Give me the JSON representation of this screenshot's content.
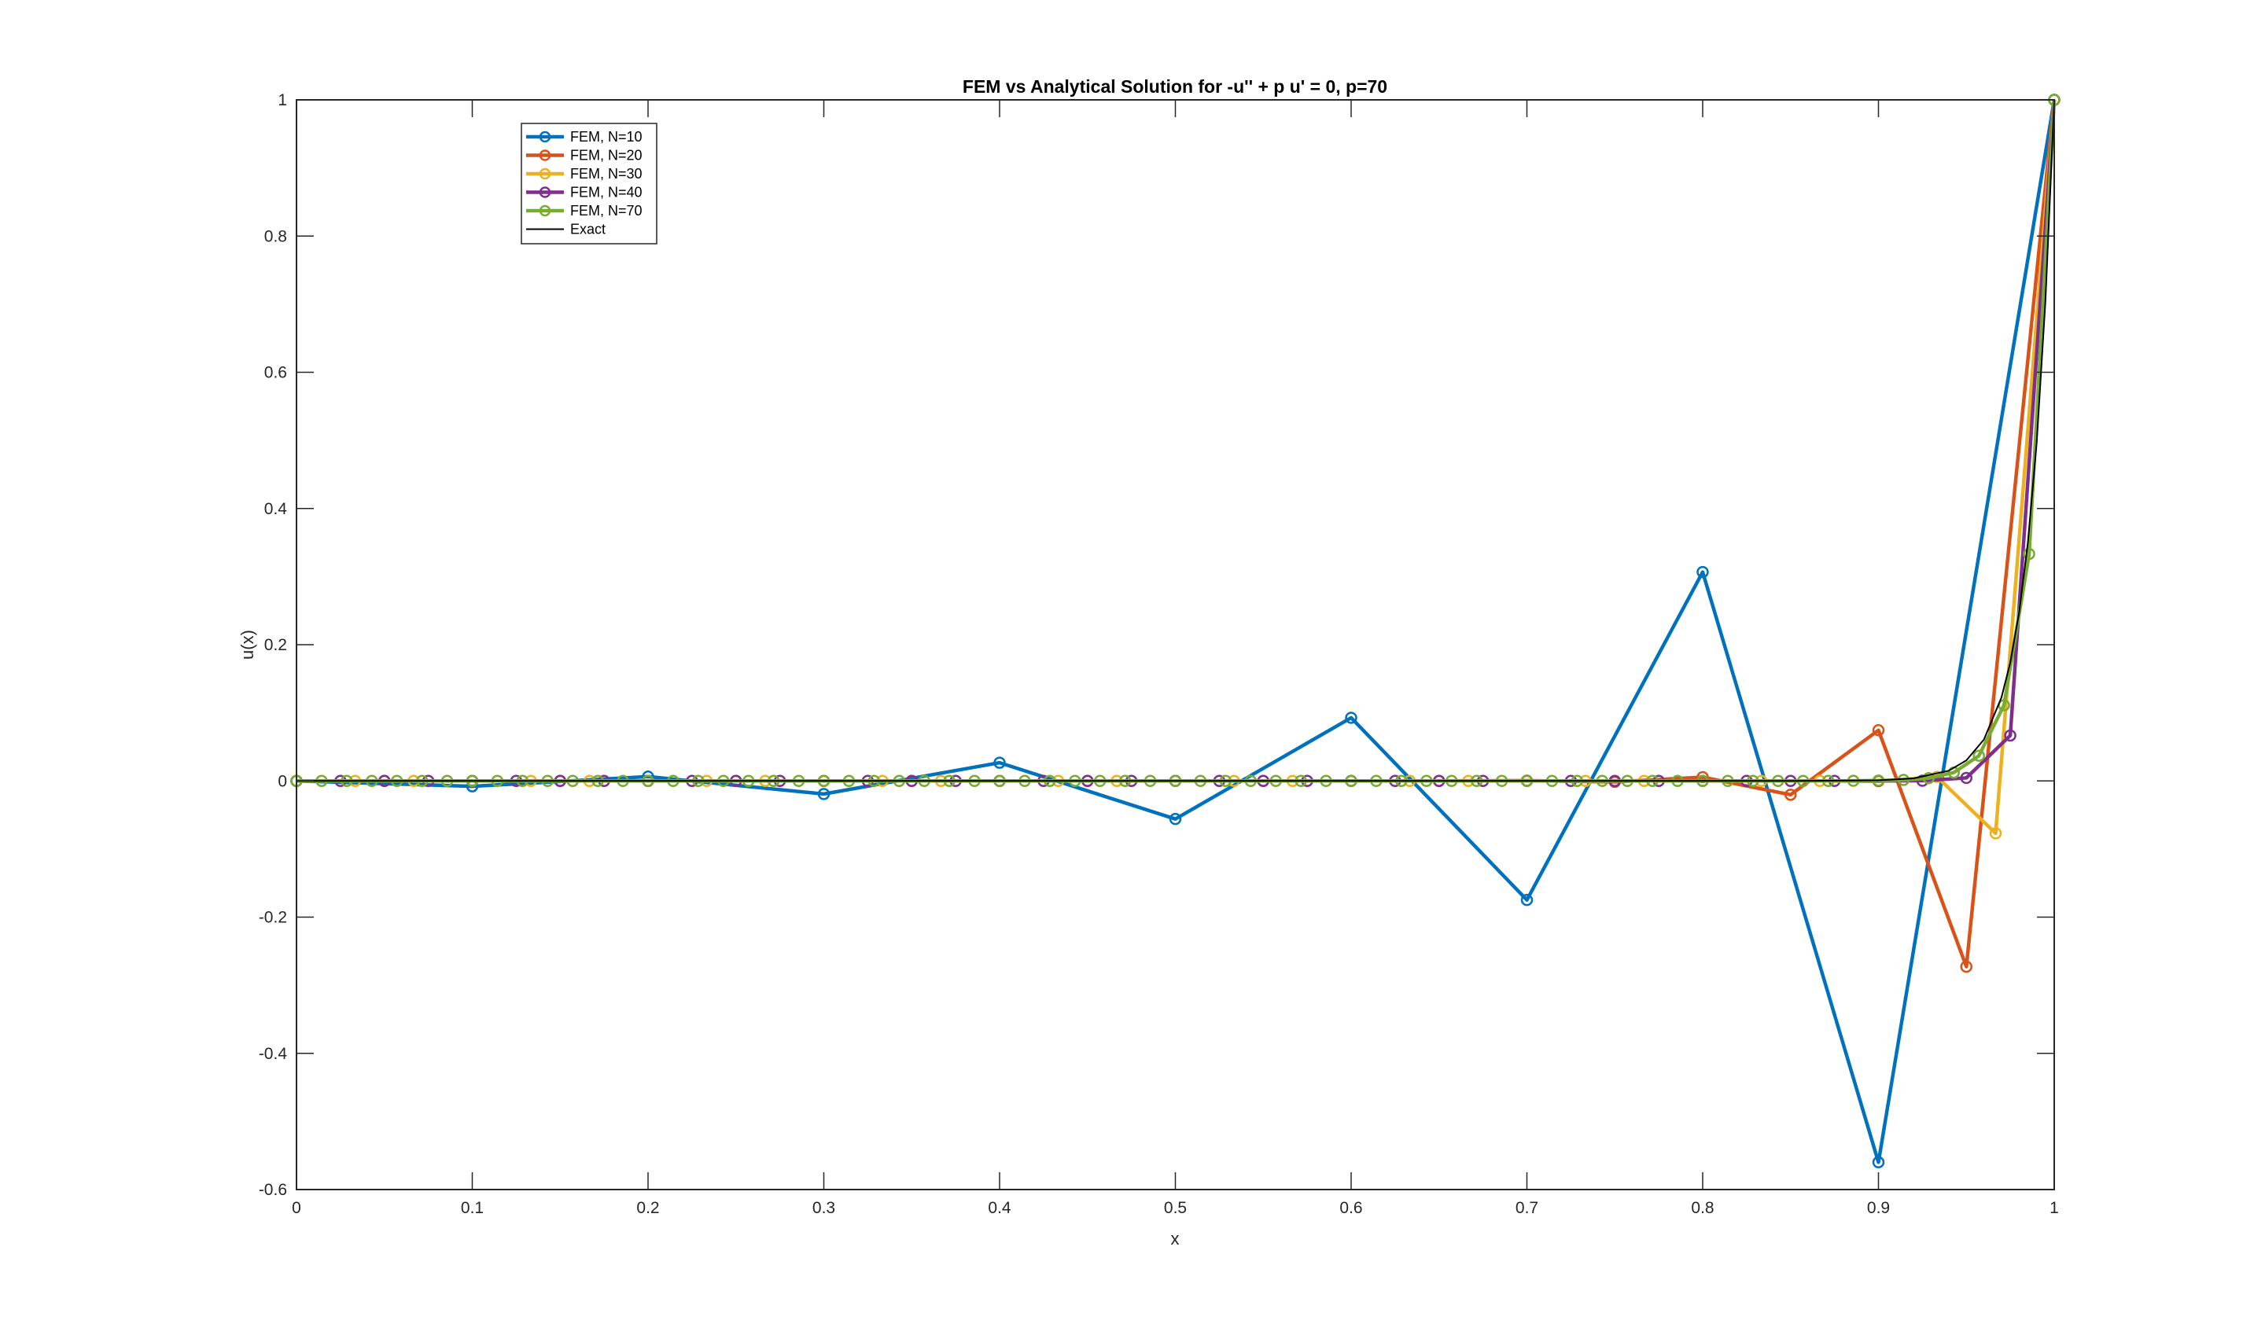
{
  "chart_data": {
    "type": "line",
    "title": "FEM vs Analytical Solution for -u'' + p u' = 0,  p=70",
    "xlabel": "x",
    "ylabel": "u(x)",
    "xlim": [
      0,
      1
    ],
    "ylim": [
      -0.6,
      1
    ],
    "xticks": [
      "0",
      "0.1",
      "0.2",
      "0.3",
      "0.4",
      "0.5",
      "0.6",
      "0.7",
      "0.8",
      "0.9",
      "1"
    ],
    "yticks": [
      "-0.6",
      "-0.4",
      "-0.2",
      "0",
      "0.2",
      "0.4",
      "0.6",
      "0.8",
      "1"
    ],
    "grid": false,
    "legend_placement": "top-left",
    "series": [
      {
        "name": "FEM, N=10",
        "N": 10,
        "color": "#0072BD",
        "marker": "circle",
        "y": [
          0,
          -0.0079,
          0.0063,
          -0.0192,
          0.0267,
          -0.0559,
          0.0927,
          -0.1748,
          0.3067,
          -0.5599,
          1
        ]
      },
      {
        "name": "FEM, N=20",
        "N": 20,
        "color": "#D95319",
        "marker": "circle",
        "y": [
          0,
          0,
          0,
          0,
          0,
          0,
          0,
          0,
          0,
          0,
          0,
          0,
          0,
          0,
          0.0004,
          -0.0015,
          0.0055,
          -0.0203,
          0.0744,
          -0.2727,
          1
        ]
      },
      {
        "name": "FEM, N=30",
        "N": 30,
        "color": "#EDB120",
        "marker": "circle",
        "y": [
          0,
          0,
          0,
          0,
          0,
          0,
          0,
          0,
          0,
          0,
          0,
          0,
          0,
          0,
          0,
          0,
          0,
          0,
          0,
          0,
          0,
          0,
          0,
          0,
          0,
          0,
          0,
          -0.0005,
          0.0059,
          -0.0769,
          1
        ]
      },
      {
        "name": "FEM, N=40",
        "N": 40,
        "color": "#7E2F8E",
        "marker": "circle",
        "y": [
          0,
          0,
          0,
          0,
          0,
          0,
          0,
          0,
          0,
          0,
          0,
          0,
          0,
          0,
          0,
          0,
          0,
          0,
          0,
          0,
          0,
          0,
          0,
          0,
          0,
          0,
          0,
          0,
          0,
          0,
          0,
          0,
          0,
          0,
          0,
          0,
          0,
          0.0003,
          0.0044,
          0.0667,
          1
        ]
      },
      {
        "name": "FEM, N=70",
        "N": 70,
        "color": "#77AC30",
        "marker": "circle",
        "y": [
          0,
          0,
          0,
          0,
          0,
          0,
          0,
          0,
          0,
          0,
          0,
          0,
          0,
          0,
          0,
          0,
          0,
          0,
          0,
          0,
          0,
          0,
          0,
          0,
          0,
          0,
          0,
          0,
          0,
          0,
          0,
          0,
          0,
          0,
          0,
          0,
          0,
          0,
          0,
          0,
          0,
          0,
          0,
          0,
          0,
          0,
          0,
          0,
          0,
          0,
          0,
          0,
          0,
          0,
          0,
          0,
          0,
          0,
          0,
          0,
          0,
          0,
          0.0002,
          0.0005,
          0.0014,
          0.0041,
          0.0123,
          0.037,
          0.1111,
          0.3333,
          1
        ]
      },
      {
        "name": "Exact",
        "color": "#000000",
        "marker": "none",
        "x": [
          0,
          0.5,
          0.8,
          0.85,
          0.9,
          0.92,
          0.94,
          0.95,
          0.96,
          0.97,
          0.975,
          0.98,
          0.985,
          0.99,
          0.995,
          1
        ],
        "y": [
          0,
          0,
          0,
          0,
          0.0009,
          0.0037,
          0.015,
          0.0302,
          0.0608,
          0.1225,
          0.1738,
          0.2466,
          0.3499,
          0.4966,
          0.7047,
          1
        ]
      }
    ]
  }
}
